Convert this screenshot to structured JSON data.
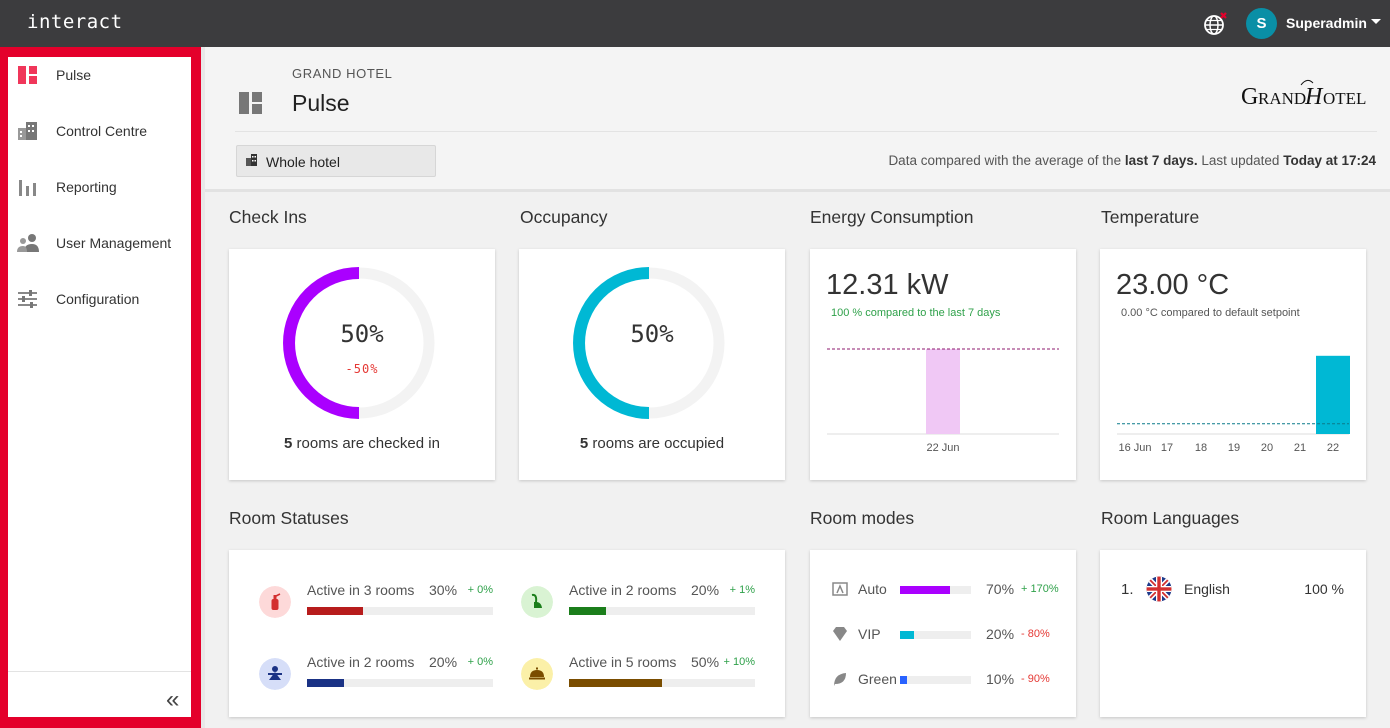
{
  "app": {
    "brand": "interact"
  },
  "topbar": {
    "user_initial": "S",
    "user_name": "Superadmin"
  },
  "sidebar": {
    "items": [
      {
        "label": "Pulse",
        "icon": "dashboard-icon",
        "active": true
      },
      {
        "label": "Control Centre",
        "icon": "building-icon"
      },
      {
        "label": "Reporting",
        "icon": "bar-chart-icon"
      },
      {
        "label": "User Management",
        "icon": "people-icon"
      },
      {
        "label": "Configuration",
        "icon": "sliders-icon"
      }
    ],
    "collapse_label": "«"
  },
  "header": {
    "hotel_name": "GRAND HOTEL",
    "page_title": "Pulse",
    "scope": "Whole hotel",
    "compare_prefix": "Data compared with the average of the ",
    "compare_period": "last 7 days.",
    "updated_prefix": " Last updated ",
    "updated_time": "Today at 17:24"
  },
  "checkins": {
    "title": "Check Ins",
    "value": "50%",
    "fraction": 0.5,
    "delta": "-50%",
    "count": "5",
    "caption": " rooms are checked in",
    "color": "#aa00ff"
  },
  "occupancy": {
    "title": "Occupancy",
    "value": "50%",
    "fraction": 0.5,
    "count": "5",
    "caption": " rooms are occupied",
    "color": "#00b8d4"
  },
  "energy": {
    "title": "Energy Consumption",
    "value": "12.31 kW",
    "note": "100 % compared to the last 7 days",
    "note_color": "#2fa14a",
    "chart_data": {
      "type": "bar",
      "categories": [
        "22 Jun"
      ],
      "values": [
        12.31
      ],
      "reference": 12.31,
      "bar_color": "#f0c8f5",
      "reference_color": "#8e1a6e"
    }
  },
  "temperature": {
    "title": "Temperature",
    "value": "23.00 °C",
    "note": "0.00 °C compared to default setpoint",
    "note_color": "#555555",
    "chart_data": {
      "type": "bar",
      "categories": [
        "16 Jun",
        "17",
        "18",
        "19",
        "20",
        "21",
        "22"
      ],
      "values": [
        0,
        0,
        0,
        0,
        0,
        0,
        23
      ],
      "reference": 3,
      "ylim": [
        0,
        25
      ],
      "bar_color": "#00b8d4",
      "reference_color": "#0a7a8a"
    }
  },
  "room_statuses": {
    "title": "Room Statuses",
    "items": [
      {
        "label": "Active in 3 rooms",
        "pct": "30%",
        "fraction": 0.3,
        "delta": "+ 0%",
        "color": "#b71c1c",
        "icon": "extinguisher-icon",
        "icon_bg": "#fdd9d9"
      },
      {
        "label": "Active in 2 rooms",
        "pct": "20%",
        "fraction": 0.2,
        "delta": "+ 1%",
        "color": "#1b7e1b",
        "icon": "vacuum-icon",
        "icon_bg": "#d9f3d3"
      },
      {
        "label": "Active in 2 rooms",
        "pct": "20%",
        "fraction": 0.2,
        "delta": "+ 0%",
        "color": "#1a3285",
        "icon": "maid-icon",
        "icon_bg": "#d6def8"
      },
      {
        "label": "Active in 5 rooms",
        "pct": "50%",
        "fraction": 0.5,
        "delta": "+ 10%",
        "color": "#7a4d00",
        "icon": "room-service-icon",
        "icon_bg": "#fbf0a8"
      }
    ]
  },
  "room_modes": {
    "title": "Room modes",
    "items": [
      {
        "label": "Auto",
        "pct": "70%",
        "fraction": 0.7,
        "delta": "+ 170%",
        "delta_color": "#2fa14a",
        "color": "#aa00ff",
        "icon": "auto-mode-icon"
      },
      {
        "label": "VIP",
        "pct": "20%",
        "fraction": 0.2,
        "delta": "- 80%",
        "delta_color": "#e53935",
        "color": "#00b8d4",
        "icon": "diamond-icon"
      },
      {
        "label": "Green",
        "pct": "10%",
        "fraction": 0.1,
        "delta": "- 90%",
        "delta_color": "#e53935",
        "color": "#2962ff",
        "icon": "leaf-icon"
      }
    ]
  },
  "room_languages": {
    "title": "Room Languages",
    "items": [
      {
        "rank": "1.",
        "language": "English",
        "pct": "100 %",
        "icon": "uk-flag-icon"
      }
    ]
  }
}
